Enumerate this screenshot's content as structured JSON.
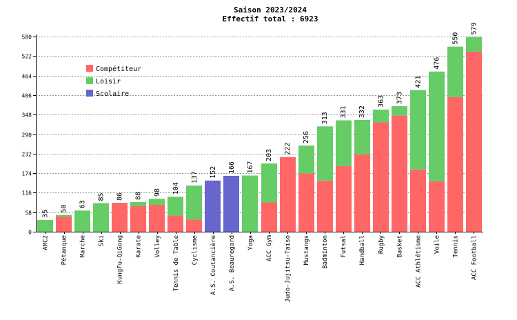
{
  "chart_data": {
    "type": "bar",
    "title": "Saison 2023/2024",
    "subtitle": "Effectif total : 6923",
    "stacked": true,
    "grid": true,
    "legend_placement": "top-left",
    "ylim": [
      0,
      580
    ],
    "yticks": [
      0,
      58,
      116,
      174,
      232,
      290,
      348,
      406,
      464,
      522,
      580
    ],
    "ytick_labels": [
      "0",
      "58",
      "116",
      "174",
      "232",
      "290",
      "348",
      "406",
      "464",
      "522",
      "580"
    ],
    "categories": [
      "AMC2",
      "Pétanque",
      "Marche",
      "Ski",
      "KungFu-QiGong",
      "Karate",
      "Volley",
      "Tennis de Table",
      "Cyclisme",
      "A.S. Coutancière",
      "A.S. Beauregard",
      "Yoga",
      "ACC Gym",
      "Judo-Jujitsu-Taïso",
      "Mustangs",
      "Badminton",
      "Futsal",
      "Handball",
      "Rugby",
      "Basket",
      "ACC Athlétisme",
      "Voile",
      "Tennis",
      "ACC Football"
    ],
    "totals": [
      35,
      50,
      63,
      85,
      86,
      88,
      98,
      104,
      137,
      152,
      166,
      167,
      203,
      222,
      256,
      313,
      331,
      332,
      363,
      373,
      421,
      476,
      550,
      579
    ],
    "total_labels": [
      "35",
      "50",
      "63",
      "85",
      "86",
      "88",
      "98",
      "104",
      "137",
      "152",
      "166",
      "167",
      "203",
      "222",
      "256",
      "313",
      "331",
      "332",
      "363",
      "373",
      "421",
      "476",
      "550",
      "579"
    ],
    "series": [
      {
        "name": "Compétiteur",
        "color": "#ff6666",
        "values": [
          0,
          45,
          0,
          0,
          86,
          76,
          80,
          48,
          36,
          0,
          0,
          0,
          87,
          222,
          173,
          152,
          195,
          230,
          325,
          345,
          185,
          150,
          400,
          535
        ]
      },
      {
        "name": "Loisir",
        "color": "#66cc66",
        "values": [
          35,
          5,
          63,
          85,
          0,
          12,
          18,
          56,
          101,
          0,
          0,
          167,
          116,
          0,
          83,
          161,
          136,
          102,
          38,
          28,
          236,
          326,
          150,
          44
        ]
      },
      {
        "name": "Scolaire",
        "color": "#6666cc",
        "values": [
          0,
          0,
          0,
          0,
          0,
          0,
          0,
          0,
          0,
          152,
          166,
          0,
          0,
          0,
          0,
          0,
          0,
          0,
          0,
          0,
          0,
          0,
          0,
          0
        ]
      }
    ]
  }
}
